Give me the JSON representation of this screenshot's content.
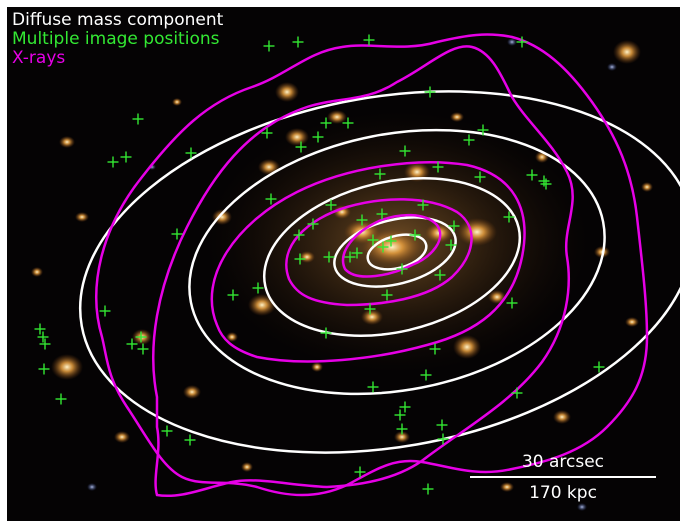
{
  "legend": {
    "diffuse_label": "Diffuse mass component",
    "images_label": "Multiple image positions",
    "xray_label": "X-rays"
  },
  "colors": {
    "diffuse": "#ffffff",
    "images": "#33e833",
    "xray": "#e600e6",
    "background": "#050304"
  },
  "scale_bar": {
    "top_label": "30 arcsec",
    "bottom_label": "170 kpc"
  }
}
